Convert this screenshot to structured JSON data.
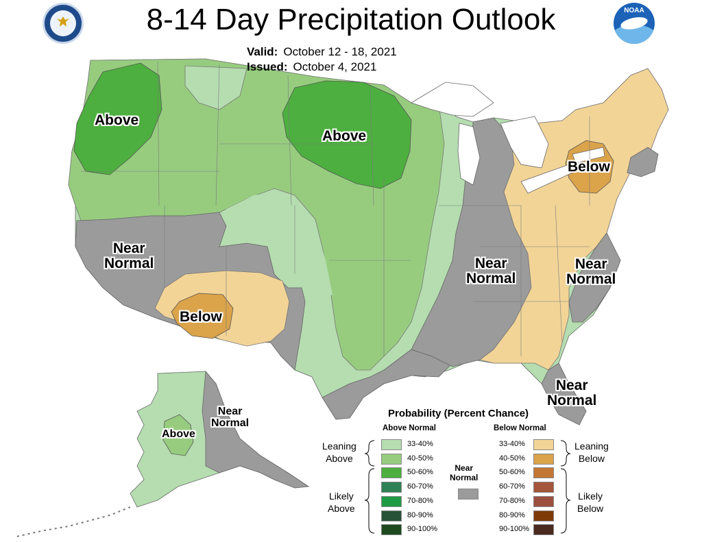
{
  "header": {
    "title": "8-14 Day Precipitation Outlook",
    "valid_label": "Valid:",
    "valid_value": "October 12 - 18, 2021",
    "issued_label": "Issued:",
    "issued_value": "October 4, 2021"
  },
  "logos": {
    "doc": "Department of Commerce seal",
    "noaa": "NOAA"
  },
  "colors": {
    "above_33_40": "#b5ddb0",
    "above_40_50": "#97cc7f",
    "above_50_60": "#4daf3f",
    "above_60_70": "#2f8055",
    "above_70_80": "#1f9a45",
    "above_80_90": "#275238",
    "above_90_100": "#1d4a1e",
    "below_33_40": "#f2d497",
    "below_40_50": "#dba34a",
    "below_50_60": "#c47835",
    "below_60_70": "#a5553a",
    "below_70_80": "#9d503f",
    "below_80_90": "#7e3b08",
    "below_90_100": "#4a2a1f",
    "near_normal": "#9b9b9b"
  },
  "map_labels": {
    "nw_above": "Above",
    "nd_above": "Above",
    "sw_near_normal": "Near\nNormal",
    "az_below": "Below",
    "ms_near_normal": "Near\nNormal",
    "ny_below": "Below",
    "carolina_near_normal": "Near\nNormal",
    "fl_near_normal": "Near\nNormal",
    "ak_above": "Above",
    "ak_near_normal": "Near\nNormal"
  },
  "legend": {
    "title": "Probability (Percent Chance)",
    "above_header": "Above Normal",
    "below_header": "Below Normal",
    "near_normal": "Near\nNormal",
    "leaning_above": "Leaning\nAbove",
    "likely_above": "Likely\nAbove",
    "leaning_below": "Leaning\nBelow",
    "likely_below": "Likely\nBelow",
    "above_items": [
      {
        "range": "33-40%",
        "color": "#b5ddb0"
      },
      {
        "range": "40-50%",
        "color": "#97cc7f"
      },
      {
        "range": "50-60%",
        "color": "#4daf3f"
      },
      {
        "range": "60-70%",
        "color": "#2f8055"
      },
      {
        "range": "70-80%",
        "color": "#1f9a45"
      },
      {
        "range": "80-90%",
        "color": "#275238"
      },
      {
        "range": "90-100%",
        "color": "#1d4a1e"
      }
    ],
    "below_items": [
      {
        "range": "33-40%",
        "color": "#f2d497"
      },
      {
        "range": "40-50%",
        "color": "#dba34a"
      },
      {
        "range": "50-60%",
        "color": "#c47835"
      },
      {
        "range": "60-70%",
        "color": "#a5553a"
      },
      {
        "range": "70-80%",
        "color": "#9d503f"
      },
      {
        "range": "80-90%",
        "color": "#7e3b08"
      },
      {
        "range": "90-100%",
        "color": "#4a2a1f"
      }
    ]
  }
}
